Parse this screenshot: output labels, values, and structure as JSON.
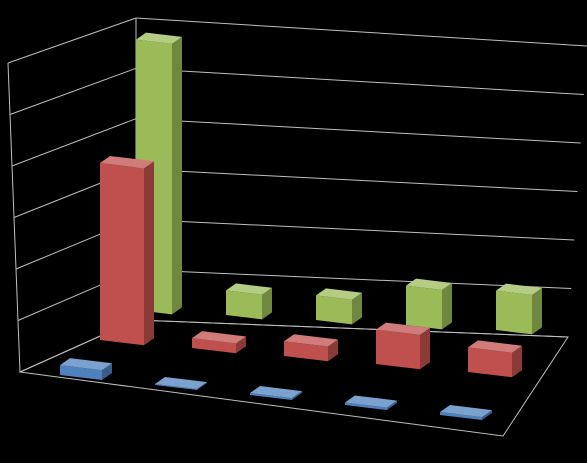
{
  "chart_data": {
    "type": "bar",
    "subtype": "3d-clustered",
    "title": "",
    "xlabel": "",
    "ylabel": "",
    "categories": [
      "",
      "",
      "",
      "",
      ""
    ],
    "series": [
      {
        "values": [
          2,
          0.2,
          0.4,
          0.5,
          0.6
        ],
        "color": "#4f81bd"
      },
      {
        "values": [
          36,
          2,
          3,
          7,
          5
        ],
        "color": "#c0504d"
      },
      {
        "values": [
          55,
          5,
          5,
          8,
          8
        ],
        "color": "#9bbb59"
      }
    ],
    "ylim": [
      0,
      60
    ],
    "grid": true,
    "legend": "none",
    "background": "#000000",
    "gridline_color": "#bfbfbf"
  }
}
